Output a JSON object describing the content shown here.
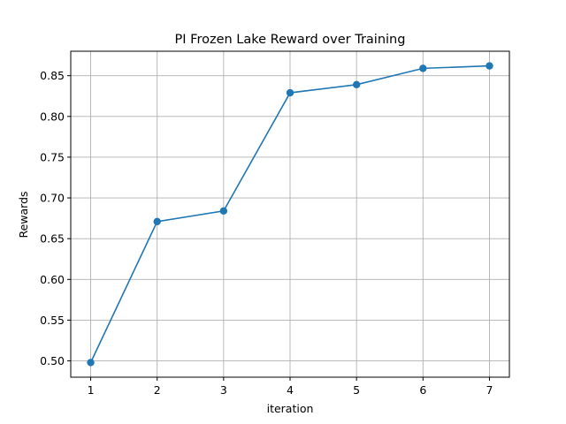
{
  "chart_data": {
    "type": "line",
    "title": "PI Frozen Lake Reward over Training",
    "xlabel": "iteration",
    "ylabel": "Rewards",
    "x": [
      1,
      2,
      3,
      4,
      5,
      6,
      7
    ],
    "series": [
      {
        "values": [
          0.498,
          0.671,
          0.684,
          0.829,
          0.839,
          0.859,
          0.862
        ],
        "color": "#1f77b4",
        "marker": "circle"
      }
    ],
    "xticks": [
      "1",
      "2",
      "3",
      "4",
      "5",
      "6",
      "7"
    ],
    "yticks": [
      "0.50",
      "0.55",
      "0.60",
      "0.65",
      "0.70",
      "0.75",
      "0.80",
      "0.85"
    ],
    "xlim": [
      0.7,
      7.3
    ],
    "ylim": [
      0.48,
      0.88
    ],
    "grid": true,
    "legend": "none"
  }
}
